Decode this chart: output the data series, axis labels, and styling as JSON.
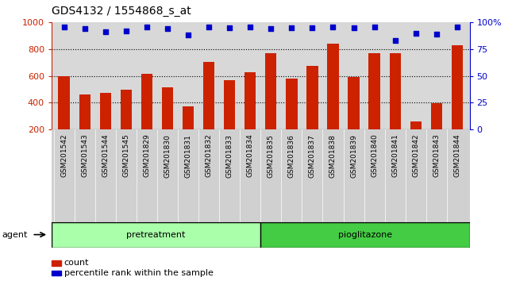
{
  "title": "GDS4132 / 1554868_s_at",
  "samples": [
    "GSM201542",
    "GSM201543",
    "GSM201544",
    "GSM201545",
    "GSM201829",
    "GSM201830",
    "GSM201831",
    "GSM201832",
    "GSM201833",
    "GSM201834",
    "GSM201835",
    "GSM201836",
    "GSM201837",
    "GSM201838",
    "GSM201839",
    "GSM201840",
    "GSM201841",
    "GSM201842",
    "GSM201843",
    "GSM201844"
  ],
  "counts": [
    600,
    463,
    470,
    497,
    618,
    515,
    370,
    707,
    568,
    630,
    768,
    580,
    672,
    843,
    590,
    768,
    768,
    258,
    395,
    830
  ],
  "percentile_ranks": [
    96,
    94,
    91,
    92,
    96,
    94,
    88,
    96,
    95,
    96,
    94,
    95,
    95,
    96,
    95,
    96,
    83,
    90,
    89,
    96
  ],
  "pretreatment_count": 10,
  "pioglitazone_count": 10,
  "bar_color": "#cc2200",
  "dot_color": "#0000cc",
  "pretreatment_color": "#aaffaa",
  "pioglitazone_color": "#44cc44",
  "ylim_left": [
    200,
    1000
  ],
  "ylim_right": [
    0,
    100
  ],
  "yticks_left": [
    200,
    400,
    600,
    800,
    1000
  ],
  "yticks_right": [
    0,
    25,
    50,
    75,
    100
  ],
  "grid_values": [
    400,
    600,
    800
  ],
  "bar_area_bg": "#d8d8d8",
  "xtick_area_bg": "#d0d0d0",
  "legend_count_label": "count",
  "legend_percentile_label": "percentile rank within the sample",
  "agent_label": "agent",
  "pretreatment_label": "pretreatment",
  "pioglitazone_label": "pioglitazone"
}
